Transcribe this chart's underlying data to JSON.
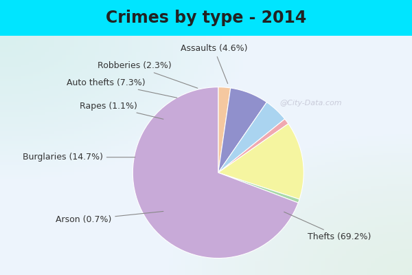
{
  "title": "Crimes by type - 2014",
  "labels": [
    "Thefts",
    "Burglaries",
    "Auto thefts",
    "Assaults",
    "Robberies",
    "Rapes",
    "Arson"
  ],
  "values": [
    69.2,
    14.7,
    7.3,
    4.6,
    2.3,
    1.1,
    0.7
  ],
  "colors": [
    "#c8aad8",
    "#f5f5a0",
    "#9090cc",
    "#aad4f0",
    "#f5c8a0",
    "#f0a8b0",
    "#a8d8a8"
  ],
  "banner_color": "#00e5ff",
  "bg_color_topleft": "#b8e8d8",
  "bg_color_center": "#e8f0f8",
  "bg_color_bottomright": "#d0e8c8",
  "title_fontsize": 17,
  "label_fontsize": 9,
  "figsize": [
    6.0,
    4.0
  ],
  "dpi": 100,
  "watermark": "@City-Data.com"
}
